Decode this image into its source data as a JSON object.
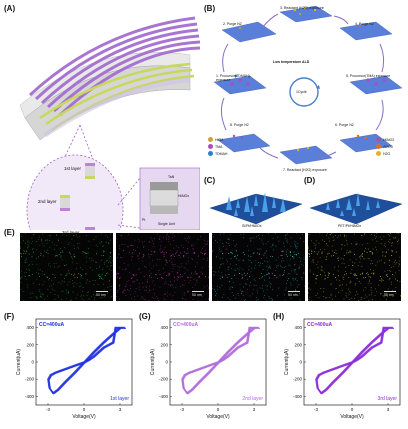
{
  "panels": {
    "A": "(A)",
    "B": "(B)",
    "C": "(C)",
    "D": "(D)",
    "E": "(E)",
    "F": "(F)",
    "G": "(G)",
    "H": "(H)"
  },
  "panel_a": {
    "layer1": "1st layer",
    "layer2": "2nd layer",
    "layer3": "3rd layer",
    "top_electrode": "TaN",
    "switching_layer": "HfAlOx",
    "bottom_electrode": "Pt",
    "single_unit": "Single Unit"
  },
  "panel_b": {
    "center_title": "Low temperature ALD",
    "cycle": "1Cycle",
    "steps": [
      "1. Procursor(TDMAH) exposure",
      "2. Purge N2",
      "3. Reactant (H2O) exposure",
      "4. Purge N2",
      "5. Procursor(TMA) exposure",
      "6. Purge N2",
      "7. Reactant (H2O) exposure",
      "8. Purge N2"
    ],
    "legend": [
      {
        "label": "HfO2",
        "color": "#c9a43a"
      },
      {
        "label": "TMA",
        "color": "#b04ac0"
      },
      {
        "label": "TDMAH",
        "color": "#2a7fd0"
      },
      {
        "label": "HfAlO2",
        "color": "#9a5aa8"
      },
      {
        "label": "Al2O3",
        "color": "#d4731c"
      },
      {
        "label": "H2O",
        "color": "#e0b42a"
      }
    ]
  },
  "panel_c": {
    "label": "Si/Pt/HfAlOx"
  },
  "panel_d": {
    "label": "PET/Pt/HfAlOx"
  },
  "panel_e": {
    "maps": [
      {
        "color": "#35d24a",
        "scale": "50 nm"
      },
      {
        "color": "#e040d8",
        "scale": "50 nm"
      },
      {
        "color": "#35d6e8",
        "scale": "50 nm"
      },
      {
        "color": "#e6e23a",
        "scale": "50 nm"
      }
    ]
  },
  "iv_plots": [
    {
      "panel": "(F)",
      "cc": "CC=400uA",
      "layer": "1st layer",
      "color": "#1f2ee0",
      "xlabel": "Voltage(V)",
      "ylabel": "Current(uA)",
      "xticks": [
        "-3",
        "0",
        "3"
      ],
      "yticks": [
        "400",
        "200",
        "0",
        "-200",
        "-400"
      ]
    },
    {
      "panel": "(G)",
      "cc": "CC=400uA",
      "layer": "2nd layer",
      "color": "#b06ad8",
      "xlabel": "Voltage(V)",
      "ylabel": "Current(uA)",
      "xticks": [
        "-3",
        "0",
        "3"
      ],
      "yticks": [
        "400",
        "200",
        "0",
        "-200",
        "-400"
      ]
    },
    {
      "panel": "(H)",
      "cc": "CC=400uA",
      "layer": "3rd layer",
      "color": "#8a2ad8",
      "xlabel": "Voltage(V)",
      "ylabel": "Current(uA)",
      "xticks": [
        "-3",
        "0",
        "3"
      ],
      "yticks": [
        "400",
        "200",
        "0",
        "-200",
        "-400"
      ]
    }
  ]
}
